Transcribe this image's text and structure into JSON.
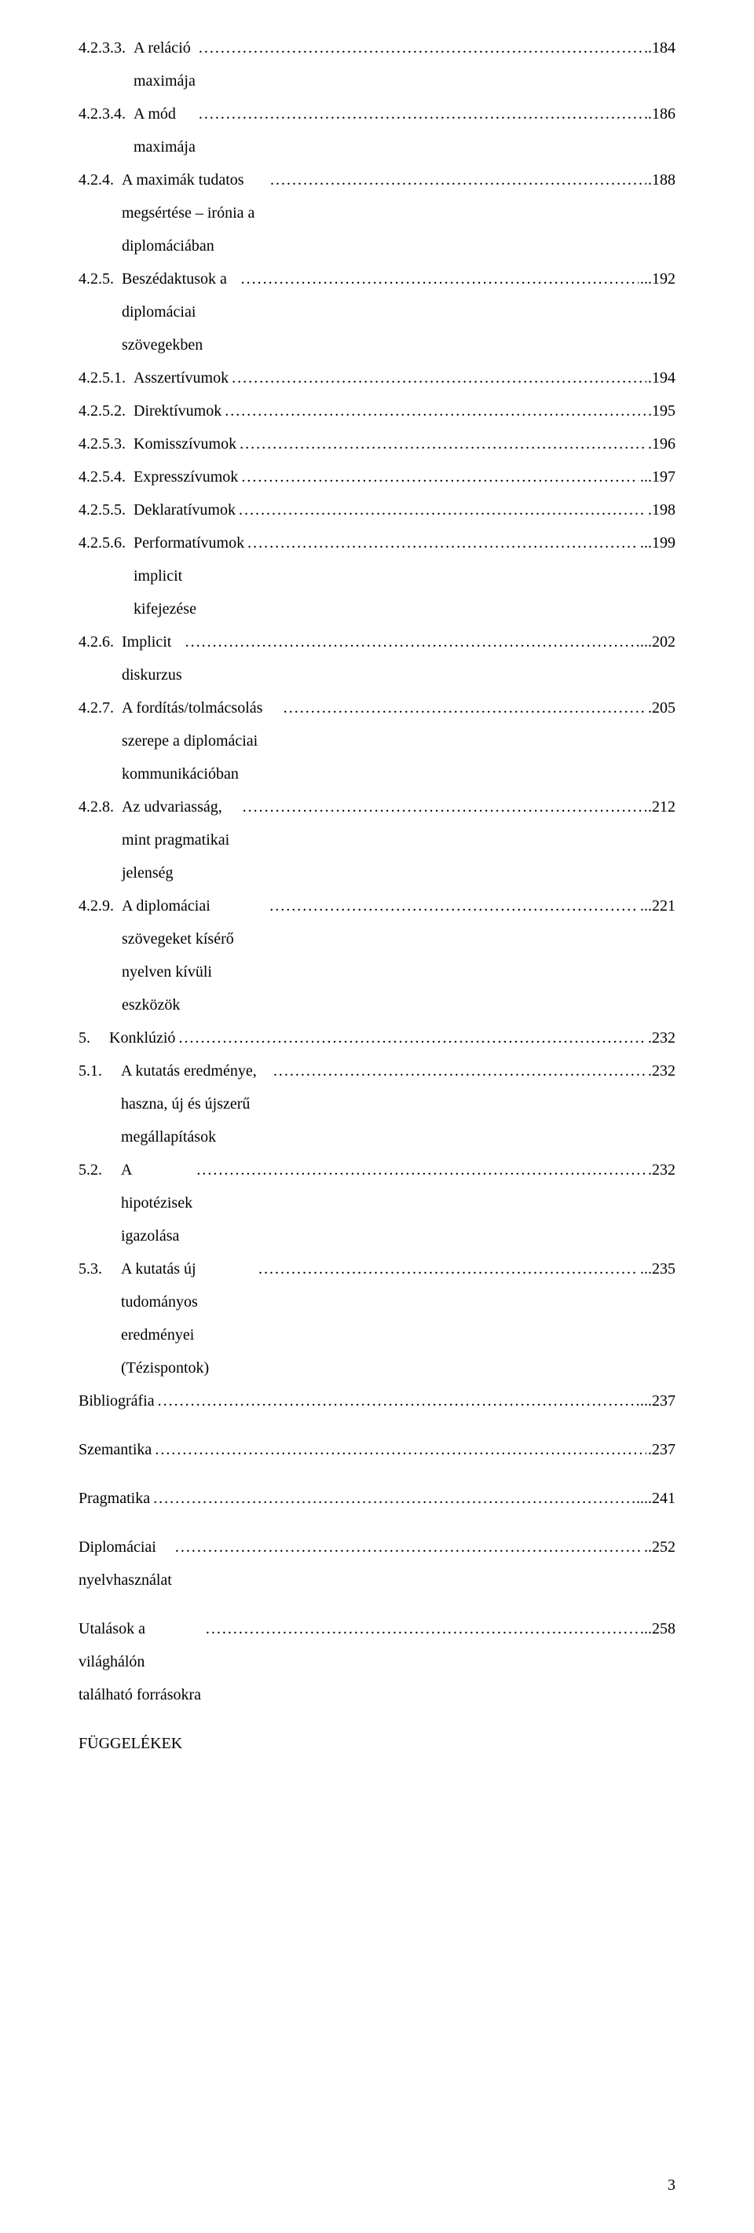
{
  "toc": {
    "entries": [
      {
        "num": "4.2.3.3.",
        "title": "A reláció maximája",
        "sep": "..",
        "page": "184"
      },
      {
        "num": "4.2.3.4.",
        "title": "A mód maximája",
        "sep": "..",
        "page": "186"
      },
      {
        "num": "4.2.4.",
        "title": "A maximák tudatos megsértése – irónia a diplomáciában",
        "sep": ".",
        "page": "188"
      },
      {
        "num": "4.2.5.",
        "title": "Beszédaktusok a diplomáciai szövegekben",
        "sep": "...",
        "page": "192"
      },
      {
        "num": "4.2.5.1.",
        "title": "Asszertívumok",
        "sep": ".",
        "page": "194"
      },
      {
        "num": "4.2.5.2.",
        "title": "Direktívumok",
        "sep": ".",
        "page": "195"
      },
      {
        "num": "4.2.5.3.",
        "title": "Komisszívumok",
        "sep": ".",
        "page": "196"
      },
      {
        "num": "4.2.5.4.",
        "title": "Expresszívumok",
        "sep": "...",
        "page": "197"
      },
      {
        "num": "4.2.5.5.",
        "title": "Deklaratívumok",
        "sep": ".",
        "page": "198"
      },
      {
        "num": "4.2.5.6.",
        "title": "Performatívumok implicit kifejezése",
        "sep": "...",
        "page": "199"
      },
      {
        "num": "4.2.6.",
        "title": "Implicit diskurzus",
        "sep": "...",
        "page": "202"
      },
      {
        "num": "4.2.7.",
        "title": "A fordítás/tolmácsolás szerepe a diplomáciai kommunikációban",
        "sep": ".",
        "page": "205"
      },
      {
        "num": "4.2.8.",
        "title": "Az udvariasság, mint pragmatikai jelenség",
        "sep": ".",
        "page": "212"
      },
      {
        "num": "4.2.9.",
        "title": "A diplomáciai szövegeket kísérő nyelven kívüli eszközök",
        "sep": "...",
        "page": "221"
      },
      {
        "num": "5.",
        "title": "Konklúzió",
        "sep": ".",
        "page": "232",
        "wide": true
      },
      {
        "num": "5.1.",
        "title": "A kutatás eredménye, haszna, új és újszerű megállapítások",
        "sep": ".",
        "page": "232",
        "wide": true
      },
      {
        "num": "5.2.",
        "title": "A hipotézisek igazolása",
        "sep": ".",
        "page": "232",
        "wide": true
      },
      {
        "num": "5.3.",
        "title": "A kutatás új tudományos eredményei (Tézispontok)",
        "sep": "...",
        "page": "235",
        "wide": true
      },
      {
        "num": "",
        "title": "Bibliográfia",
        "sep": "...",
        "page": "237"
      }
    ],
    "spaced_entries": [
      {
        "title": "Szemantika",
        "sep": ".",
        "page": "237"
      },
      {
        "title": "Pragmatika",
        "sep": "....",
        "page": "241"
      },
      {
        "title": "Diplomáciai nyelvhasználat",
        "sep": "..",
        "page": "252"
      },
      {
        "title": "Utalások a világhálón található forrásokra",
        "sep": "...",
        "page": "258"
      }
    ],
    "final_heading": "FÜGGELÉKEK"
  },
  "page_number": "3",
  "style": {
    "font_family": "Times New Roman",
    "body_fontsize_pt": 15,
    "text_color": "#000000",
    "background_color": "#ffffff",
    "line_height": 2.1
  }
}
